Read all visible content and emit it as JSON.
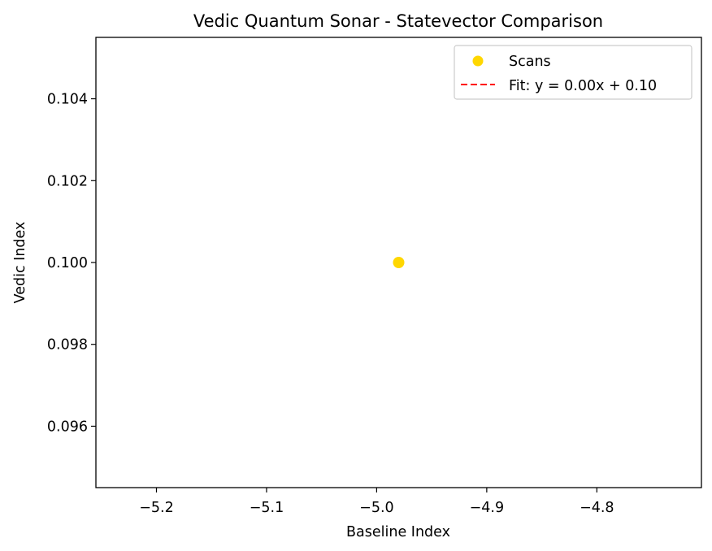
{
  "chart_data": {
    "type": "scatter",
    "title": "Vedic Quantum Sonar - Statevector Comparison",
    "xlabel": "Baseline Index",
    "ylabel": "Vedic Index",
    "xlim": [
      -5.255,
      -4.705
    ],
    "ylim": [
      0.0945,
      0.1055
    ],
    "xticks": [
      -5.2,
      -5.1,
      -5.0,
      -4.9,
      -4.8
    ],
    "xtick_labels": [
      "−5.2",
      "−5.1",
      "−5.0",
      "−4.9",
      "−4.8"
    ],
    "yticks": [
      0.096,
      0.098,
      0.1,
      0.102,
      0.104
    ],
    "ytick_labels": [
      "0.096",
      "0.098",
      "0.100",
      "0.102",
      "0.104"
    ],
    "grid": false,
    "legend_position": "top-right",
    "series": [
      {
        "name": "Scans",
        "kind": "scatter",
        "color": "#ffd700",
        "points": [
          {
            "x": -4.98,
            "y": 0.1
          }
        ]
      },
      {
        "name": "Fit: y = 0.00x + 0.10",
        "kind": "line",
        "style": "dashed",
        "color": "#ff0000",
        "slope": 0.0,
        "intercept": 0.1
      }
    ]
  }
}
